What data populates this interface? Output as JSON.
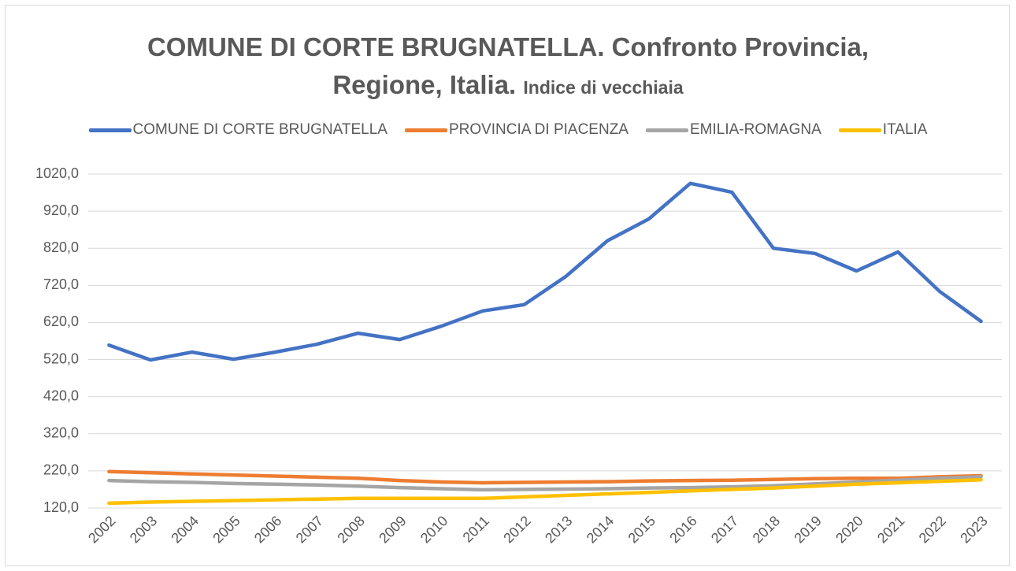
{
  "chart_data": {
    "type": "line",
    "title": "COMUNE DI CORTE BRUGNATELLA. Confronto Provincia, Regione, Italia.",
    "subtitle": "Indice di vecchiaia",
    "categories": [
      "2002",
      "2003",
      "2004",
      "2005",
      "2006",
      "2007",
      "2008",
      "2009",
      "2010",
      "2011",
      "2012",
      "2013",
      "2014",
      "2015",
      "2016",
      "2017",
      "2018",
      "2019",
      "2020",
      "2021",
      "2022",
      "2023"
    ],
    "series": [
      {
        "name": "COMUNE DI CORTE BRUGNATELLA",
        "color": "#4472c4",
        "values": [
          559,
          519,
          540,
          521,
          540,
          561,
          591,
          574,
          610,
          651,
          668,
          744,
          840,
          899,
          995,
          971,
          820,
          806,
          759,
          810,
          704,
          623
        ]
      },
      {
        "name": "PROVINCIA DI PIACENZA",
        "color": "#ed7d31",
        "values": [
          218,
          215,
          212,
          209,
          206,
          203,
          200,
          194,
          190,
          188,
          189,
          190,
          191,
          193,
          194,
          195,
          197,
          199,
          200,
          200,
          204,
          207
        ]
      },
      {
        "name": "EMILIA-ROMAGNA",
        "color": "#a5a5a5",
        "values": [
          194,
          191,
          189,
          186,
          184,
          182,
          179,
          175,
          172,
          169,
          170,
          171,
          172,
          174,
          175,
          177,
          180,
          185,
          190,
          195,
          200,
          204
        ]
      },
      {
        "name": "ITALIA",
        "color": "#ffc000",
        "values": [
          133,
          136,
          138,
          140,
          142,
          144,
          146,
          146,
          146,
          146,
          150,
          154,
          158,
          162,
          166,
          170,
          174,
          179,
          184,
          188,
          192,
          196
        ]
      }
    ],
    "ylim": [
      120,
      1020
    ],
    "yticks": [
      {
        "value": 120,
        "label": "120,0"
      },
      {
        "value": 220,
        "label": "220,0"
      },
      {
        "value": 320,
        "label": "320,0"
      },
      {
        "value": 420,
        "label": "420,0"
      },
      {
        "value": 520,
        "label": "520,0"
      },
      {
        "value": 620,
        "label": "620,0"
      },
      {
        "value": 720,
        "label": "720,0"
      },
      {
        "value": 820,
        "label": "820,0"
      },
      {
        "value": 920,
        "label": "920,0"
      },
      {
        "value": 1020,
        "label": "1020,0"
      }
    ],
    "grid": true
  }
}
